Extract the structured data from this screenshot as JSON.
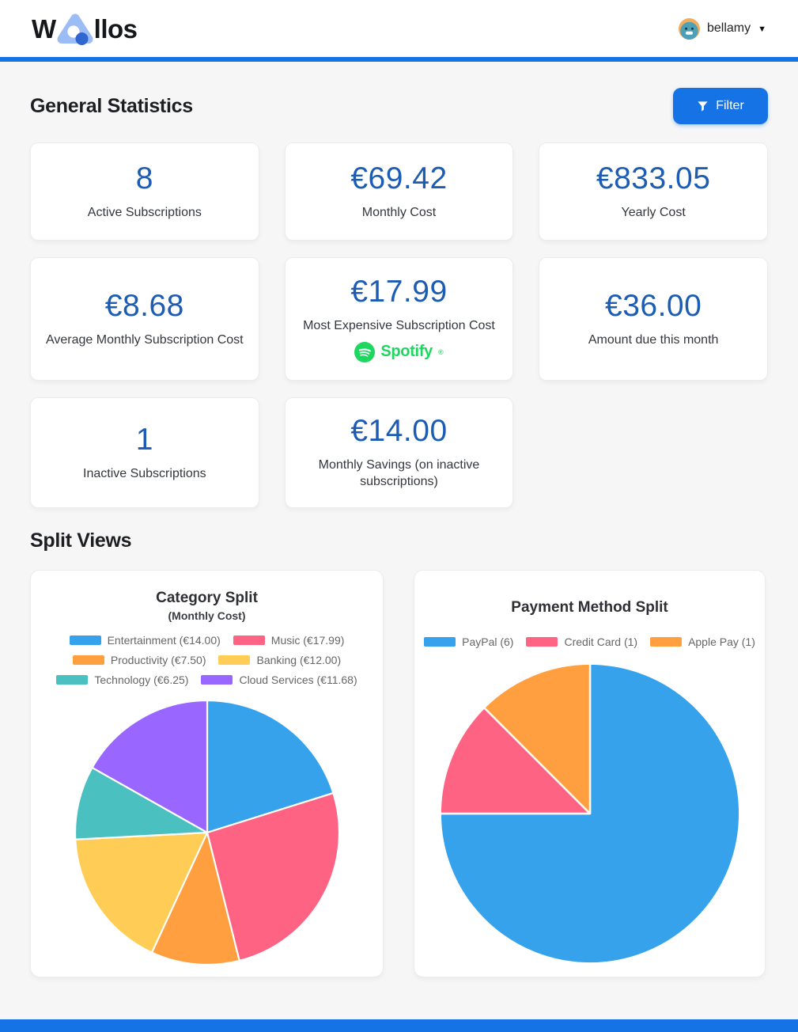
{
  "header": {
    "logo_w": "W",
    "logo_rest": "llos",
    "username": "bellamy",
    "caret": "▼"
  },
  "general": {
    "title": "General Statistics",
    "filter_label": "Filter"
  },
  "stats": [
    {
      "value": "8",
      "label": "Active Subscriptions"
    },
    {
      "value": "€69.42",
      "label": "Monthly Cost"
    },
    {
      "value": "€833.05",
      "label": "Yearly Cost"
    },
    {
      "value": "€8.68",
      "label": "Average Monthly Subscription Cost"
    },
    {
      "value": "€17.99",
      "label": "Most Expensive Subscription Cost",
      "logo_text": "Spotify",
      "logo_reg": "®"
    },
    {
      "value": "€36.00",
      "label": "Amount due this month"
    },
    {
      "value": "1",
      "label": "Inactive Subscriptions"
    },
    {
      "value": "€14.00",
      "label": "Monthly Savings (on inactive subscriptions)"
    }
  ],
  "split": {
    "title": "Split Views"
  },
  "chart_data": [
    {
      "type": "pie",
      "title": "Category Split",
      "subtitle": "(Monthly Cost)",
      "labels": [
        "Entertainment",
        "Music",
        "Productivity",
        "Banking",
        "Technology",
        "Cloud Services"
      ],
      "values": [
        14.0,
        17.99,
        7.5,
        12.0,
        6.25,
        11.68
      ],
      "legend_labels": [
        "Entertainment (€14.00)",
        "Music (€17.99)",
        "Productivity (€7.50)",
        "Banking (€12.00)",
        "Technology (€6.25)",
        "Cloud Services (€11.68)"
      ],
      "colors": [
        "#36a2eb",
        "#ff6384",
        "#ff9f40",
        "#ffcd56",
        "#4bc0c0",
        "#9966ff"
      ],
      "legend_position": "top",
      "start_angle_deg": 0,
      "direction": "clockwise",
      "total": 69.42,
      "unit": "EUR"
    },
    {
      "type": "pie",
      "title": "Payment Method Split",
      "labels": [
        "PayPal",
        "Credit Card",
        "Apple Pay"
      ],
      "values": [
        6,
        1,
        1
      ],
      "legend_labels": [
        "PayPal (6)",
        "Credit Card (1)",
        "Apple Pay (1)"
      ],
      "colors": [
        "#36a2eb",
        "#ff6384",
        "#ff9f40"
      ],
      "legend_position": "top",
      "start_angle_deg": 0,
      "direction": "clockwise",
      "total": 8,
      "unit": "subscriptions"
    }
  ],
  "colors": {
    "accent": "#1673e6",
    "stat_value": "#1d5cb3",
    "spotify_green": "#1ed760"
  }
}
